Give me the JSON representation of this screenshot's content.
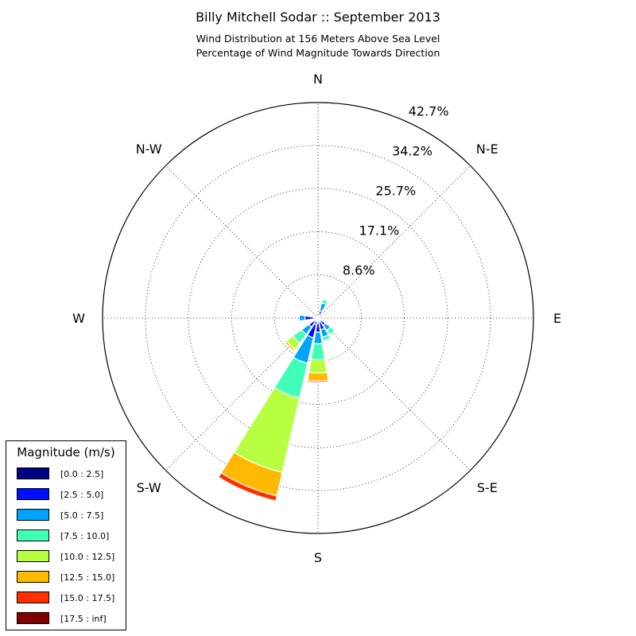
{
  "title": "Billy Mitchell Sodar :: September 2013",
  "subtitle_1": "Wind Distribution at 156 Meters Above Sea Level",
  "subtitle_2": "Percentage of Wind Magnitude Towards Direction",
  "legend": {
    "title": "Magnitude (m/s)",
    "items": [
      {
        "label": "[0.0 : 2.5]",
        "color": "#000080"
      },
      {
        "label": "[2.5 : 5.0]",
        "color": "#0010ff"
      },
      {
        "label": "[5.0 : 7.5]",
        "color": "#00a4ff"
      },
      {
        "label": "[7.5 : 10.0]",
        "color": "#40ffb7"
      },
      {
        "label": "[10.0 : 12.5]",
        "color": "#b7ff40"
      },
      {
        "label": "[12.5 : 15.0]",
        "color": "#ffb900"
      },
      {
        "label": "[15.0 : 17.5]",
        "color": "#ff3000"
      },
      {
        "label": "[17.5 : inf]",
        "color": "#800000"
      }
    ]
  },
  "chart_data": {
    "type": "polar-stacked-bar",
    "direction_labels": [
      "N",
      "N-E",
      "E",
      "S-E",
      "S",
      "S-W",
      "W",
      "N-W"
    ],
    "radial_ticks": [
      8.6,
      17.1,
      25.7,
      34.2,
      42.7
    ],
    "radial_tick_labels": [
      "8.6%",
      "17.1%",
      "25.7%",
      "34.2%",
      "42.7%"
    ],
    "rmax": 42.7,
    "grid": true,
    "legend_position": "bottom-left",
    "bin_labels": [
      "[0.0 : 2.5]",
      "[2.5 : 5.0]",
      "[5.0 : 7.5]",
      "[7.5 : 10.0]",
      "[10.0 : 12.5]",
      "[12.5 : 15.0]",
      "[15.0 : 17.5]",
      "[17.5 : inf]"
    ],
    "sectors": [
      {
        "direction_deg": 0,
        "values": [
          0.3,
          0.2,
          0,
          0,
          0,
          0,
          0,
          0
        ]
      },
      {
        "direction_deg": 22.5,
        "values": [
          0.5,
          1.0,
          1.6,
          0.7,
          0,
          0,
          0,
          0
        ]
      },
      {
        "direction_deg": 45,
        "values": [
          0.3,
          0,
          0,
          0,
          0,
          0,
          0,
          0
        ]
      },
      {
        "direction_deg": 67.5,
        "values": [
          0.2,
          0,
          0,
          0,
          0,
          0,
          0,
          0
        ]
      },
      {
        "direction_deg": 90,
        "values": [
          0.2,
          0,
          0,
          0,
          0,
          0,
          0,
          0
        ]
      },
      {
        "direction_deg": 112.5,
        "values": [
          0.3,
          0,
          0,
          0,
          0,
          0,
          0,
          0
        ]
      },
      {
        "direction_deg": 135,
        "values": [
          0.6,
          1.2,
          1.2,
          1.1,
          0,
          0,
          0,
          0
        ]
      },
      {
        "direction_deg": 157.5,
        "values": [
          0.8,
          1.6,
          1.5,
          0.8,
          0,
          0,
          0,
          0
        ]
      },
      {
        "direction_deg": 180,
        "values": [
          1.0,
          1.8,
          2.3,
          3.2,
          2.6,
          1.6,
          0.3,
          0
        ]
      },
      {
        "direction_deg": 202.5,
        "values": [
          1.4,
          2.6,
          5.2,
          7.1,
          15.1,
          4.8,
          1.0,
          0
        ]
      },
      {
        "direction_deg": 225,
        "values": [
          0.7,
          1.5,
          1.8,
          2.1,
          1.6,
          0.4,
          0,
          0
        ]
      },
      {
        "direction_deg": 247.5,
        "values": [
          0.4,
          0.4,
          0,
          0,
          0,
          0,
          0,
          0
        ]
      },
      {
        "direction_deg": 270,
        "values": [
          0.8,
          1.8,
          1.1,
          0,
          0,
          0,
          0,
          0
        ]
      },
      {
        "direction_deg": 292.5,
        "values": [
          0.5,
          0,
          0,
          0,
          0,
          0,
          0,
          0
        ]
      },
      {
        "direction_deg": 315,
        "values": [
          0.3,
          0,
          0,
          0,
          0,
          0,
          0,
          0
        ]
      },
      {
        "direction_deg": 337.5,
        "values": [
          0.3,
          0,
          0,
          0,
          0,
          0,
          0,
          0
        ]
      }
    ]
  }
}
